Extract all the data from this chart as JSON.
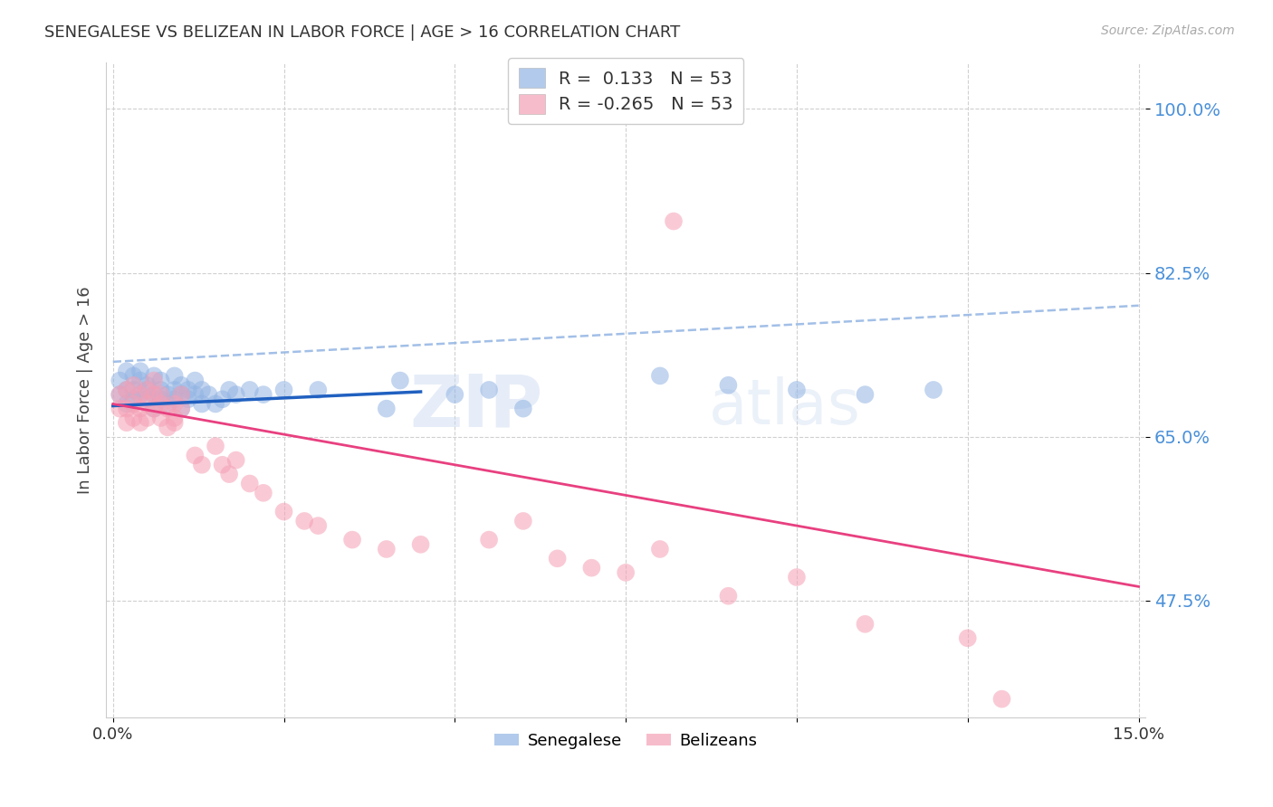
{
  "title": "SENEGALESE VS BELIZEAN IN LABOR FORCE | AGE > 16 CORRELATION CHART",
  "source": "Source: ZipAtlas.com",
  "ylabel": "In Labor Force | Age > 16",
  "ytick_labels": [
    "100.0%",
    "82.5%",
    "65.0%",
    "47.5%"
  ],
  "ytick_values": [
    1.0,
    0.825,
    0.65,
    0.475
  ],
  "xlim": [
    0.0,
    0.15
  ],
  "ylim": [
    0.35,
    1.05
  ],
  "legend_blue_r": "0.133",
  "legend_blue_n": "53",
  "legend_pink_r": "-0.265",
  "legend_pink_n": "53",
  "blue_color": "#92b4e3",
  "pink_color": "#f5a0b5",
  "blue_line_color": "#2060c0",
  "pink_line_color": "#e84080",
  "dashed_line_color": "#92b4e3",
  "watermark_zip": "ZIP",
  "watermark_atlas": "atlas",
  "blue_line_x": [
    0.0,
    0.045
  ],
  "blue_line_y": [
    0.683,
    0.698
  ],
  "dashed_line_x": [
    0.0,
    0.15
  ],
  "dashed_line_y": [
    0.73,
    0.79
  ],
  "pink_line_x": [
    0.0,
    0.15
  ],
  "pink_line_y": [
    0.685,
    0.49
  ],
  "sen_x": [
    0.001,
    0.001,
    0.002,
    0.002,
    0.002,
    0.003,
    0.003,
    0.003,
    0.004,
    0.004,
    0.004,
    0.005,
    0.005,
    0.005,
    0.006,
    0.006,
    0.006,
    0.007,
    0.007,
    0.007,
    0.008,
    0.008,
    0.009,
    0.009,
    0.009,
    0.01,
    0.01,
    0.01,
    0.011,
    0.011,
    0.012,
    0.012,
    0.013,
    0.013,
    0.014,
    0.015,
    0.016,
    0.017,
    0.018,
    0.02,
    0.022,
    0.025,
    0.03,
    0.04,
    0.042,
    0.05,
    0.055,
    0.06,
    0.08,
    0.09,
    0.1,
    0.11,
    0.12
  ],
  "sen_y": [
    0.695,
    0.71,
    0.7,
    0.72,
    0.685,
    0.715,
    0.7,
    0.69,
    0.71,
    0.695,
    0.72,
    0.7,
    0.69,
    0.705,
    0.695,
    0.715,
    0.68,
    0.7,
    0.69,
    0.71,
    0.695,
    0.685,
    0.7,
    0.715,
    0.69,
    0.695,
    0.705,
    0.68,
    0.7,
    0.69,
    0.695,
    0.71,
    0.685,
    0.7,
    0.695,
    0.685,
    0.69,
    0.7,
    0.695,
    0.7,
    0.695,
    0.7,
    0.7,
    0.68,
    0.71,
    0.695,
    0.7,
    0.68,
    0.715,
    0.705,
    0.7,
    0.695,
    0.7
  ],
  "bel_x": [
    0.001,
    0.001,
    0.002,
    0.002,
    0.002,
    0.003,
    0.003,
    0.003,
    0.004,
    0.004,
    0.004,
    0.005,
    0.005,
    0.005,
    0.006,
    0.006,
    0.006,
    0.007,
    0.007,
    0.007,
    0.008,
    0.008,
    0.009,
    0.009,
    0.009,
    0.01,
    0.01,
    0.012,
    0.013,
    0.015,
    0.016,
    0.017,
    0.018,
    0.02,
    0.022,
    0.025,
    0.028,
    0.03,
    0.035,
    0.04,
    0.045,
    0.055,
    0.06,
    0.065,
    0.07,
    0.075,
    0.08,
    0.09,
    0.1,
    0.11,
    0.082,
    0.13,
    0.125
  ],
  "bel_y": [
    0.68,
    0.695,
    0.665,
    0.7,
    0.68,
    0.705,
    0.685,
    0.67,
    0.695,
    0.68,
    0.665,
    0.7,
    0.685,
    0.67,
    0.695,
    0.68,
    0.71,
    0.67,
    0.685,
    0.695,
    0.66,
    0.68,
    0.67,
    0.685,
    0.665,
    0.68,
    0.695,
    0.63,
    0.62,
    0.64,
    0.62,
    0.61,
    0.625,
    0.6,
    0.59,
    0.57,
    0.56,
    0.555,
    0.54,
    0.53,
    0.535,
    0.54,
    0.56,
    0.52,
    0.51,
    0.505,
    0.53,
    0.48,
    0.5,
    0.45,
    0.88,
    0.37,
    0.435
  ]
}
